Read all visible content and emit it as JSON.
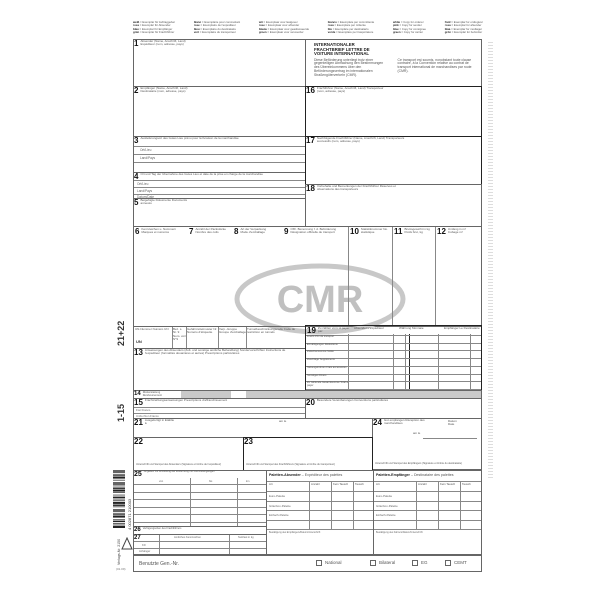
{
  "legend": [
    {
      "c": [
        "weiß",
        "rosa",
        "blau",
        "grün"
      ],
      "t": [
        "Exemplar für Auftraggeber",
        "Exemplar für Absender",
        "Exemplar für Empfänger",
        "Exemplar für Frachtführer"
      ]
    },
    {
      "c": [
        "blanc",
        "rose",
        "bleu",
        "vert"
      ],
      "t": [
        "Exemplaire pour commettant",
        "Exemplaire de l'expéditeur",
        "Exemplaire du destinataire",
        "Exemplaire du transporteur"
      ]
    },
    {
      "c": [
        "wit",
        "rose",
        "blauw",
        "groen"
      ],
      "t": [
        "Exemplaar voor lastgever",
        "Exemplaar voor afzender",
        "Exemplaar voor geadresseerde",
        "Exemplaar voor vervoerder"
      ]
    },
    {
      "c": [
        "bianco",
        "rosa",
        "blu",
        "verde"
      ],
      "t": [
        "Esemplare per committente",
        "Esemplare per mittente",
        "Esemplare per destinatario",
        "Esemplare per trasportatore"
      ]
    },
    {
      "c": [
        "white",
        "pink",
        "blue",
        "green"
      ],
      "t": [
        "Copy for orderer",
        "Copy for sender",
        "Copy for consignee",
        "Copy for carrier"
      ]
    },
    {
      "c": [
        "hvid",
        "rosa",
        "blaa",
        "grön"
      ],
      "t": [
        "Exemplar for ordregiver",
        "Exemplar for afsender",
        "Exemplar for modtager",
        "Exemplar for befordrer"
      ]
    }
  ],
  "header": {
    "title": "INTERNATIONALER FRACHTBRIEF LETTRE DE VOITURE INTERNATIONAL",
    "text_de": "Diese Beförderung unterliegt trotz einer gegenteiligen Abmachung den Bestimmungen des Übereinkommens über den Beförderungsvertrag im internationalen Straßengüterverkehr (CMR).",
    "text_fr": "Ce transport est soumis, nonobstant toute clause contraire, à la Convention relative au contrat de transport international de marchandises par route (CMR)."
  },
  "fields": {
    "f1": {
      "n": "1",
      "l": "Absender (Name, Anschrift, Land) Expéditeur (nom, adresse, pays)"
    },
    "f2": {
      "n": "2",
      "l": "Empfänger (Name, Anschrift, Land) Destinataire (nom, adresse, pays)"
    },
    "f3": {
      "n": "3",
      "l": "Auslieferungsort des Gutes Lieu prévu pour la livraison de la marchandise"
    },
    "f4": {
      "n": "4",
      "l": "Ort und Tag der Übernahme des Gutes Lieu et date de la prise en charge de la marchandise"
    },
    "f5": {
      "n": "5",
      "l": "Beigefügte Dokumente Documents annexés"
    },
    "f6": {
      "n": "6",
      "l": "Kennzeichen u. Nummern Marques et numéros"
    },
    "f7": {
      "n": "7",
      "l": "Anzahl der Packstücke Nombre des colis"
    },
    "f8": {
      "n": "8",
      "l": "Art der Verpackung Mode d'emballage"
    },
    "f9": {
      "n": "9",
      "l": "Offz. Benennung f. d. Beförderung Désignation officielle de transport"
    },
    "f10": {
      "n": "10",
      "l": "Statistiknummer No. statistique"
    },
    "f11": {
      "n": "11",
      "l": "Bruttogewicht in kg Poids brut, kg"
    },
    "f12": {
      "n": "12",
      "l": "Umfang in m³ Cubage m³"
    },
    "f13": {
      "n": "13",
      "l": "Anweisungen des Absenders (Zoll- und sonstige amtliche Behandlung) Sondervorschriften Instructions de l'expéditeur (formalités douanières et autres) Prescriptions particulières"
    },
    "f14": {
      "n": "14",
      "l": "Rückerstattung Remboursement"
    },
    "f15": {
      "n": "15",
      "l": "Frachtzahlungsanweisungen Prescriptions d'affranchissement"
    },
    "f16": {
      "n": "16",
      "l": "Frachtführer (Name, Anschrift, Land) Transporteur (nom, adresse, pays)"
    },
    "f17": {
      "n": "17",
      "l": "Nachfolgende Frachtführer (Name, Anschrift, Land) Transporteurs successifs (nom, adresse, pays)"
    },
    "f18": {
      "n": "18",
      "l": "Vorbehalte und Bemerkungen der Frachtführer Réserves et observations des transporteurs"
    },
    "f19": {
      "n": "19",
      "l": "Zu zahlen vom: A payer par:"
    },
    "f20": {
      "n": "20",
      "l": "Besondere Vereinbarungen Conventions particulières"
    },
    "f21": {
      "n": "21",
      "l": "Ausgefertigt in Etablie à"
    },
    "f22": {
      "n": "22",
      "l": "Unterschrift und Stempel des Absenders (Signature et timbre de l'expéditeur)"
    },
    "f23": {
      "n": "23",
      "l": "Unterschrift und Stempel des Frachtführers (Signature et timbre du transporteur)"
    },
    "f24": {
      "n": "24",
      "l": "Gut empfangen Réception des marchandises"
    },
    "f25": {
      "n": "25",
      "l": "Angaben zur Ermittlung der Entfernung mit Grenzübergängen"
    },
    "f26": {
      "n": "26",
      "l": "Verfügungsorten des Frachtführers"
    },
    "f27": {
      "n": "27",
      "l": ""
    }
  },
  "sub": {
    "ort": "Ort/Lieu",
    "land": "Land/Pays",
    "datum": "Datum/Date",
    "am": "am le",
    "datum24": "Datum Date",
    "sig24": "Unterschrift und Stempel des Empfängers (Signature et timbre du destinataire)",
    "frei": "Frei Franco",
    "unfrei": "Unfrei Non Franco"
  },
  "un_row": [
    "UN-Nummer Numéro UN",
    "Bez. s. Nr. 9 Nom. voir N°9",
    "Gefahrzettelmuster Nr. Numéro d'étiquette",
    "Verp.-Gruppe Groupe d'emballage",
    "Tunnelbeschränkungscode Code de restriction en tunnels"
  ],
  "un_value": "UN",
  "f19_cols": [
    "Absender L'expéditeur",
    "Währung Monnaie",
    "Empfänger Le Destinataire"
  ],
  "f19_rows": [
    "Fracht Prix de transport",
    "Ermäßigungen Réductions",
    "Zwischensumme Solde",
    "Zuschläge Suppléments",
    "Nebengebühren Frais accessoires",
    "Sonstiges Divers",
    "Zu zahlende Gesamtsumme Total à payer"
  ],
  "f25_cols": [
    "von",
    "bis",
    "km"
  ],
  "pallets_sender": {
    "title": "Paletten-Absender",
    "sub": "– Expéditeur des palettes",
    "cols": [
      "Art",
      "Anzahl",
      "Kein Tausch",
      "Tausch"
    ],
    "rows": [
      "Euro-Palette",
      "Gitterbox-Palette",
      "Einfach-Palette"
    ],
    "confirm": "Bestätigung des Empfängers/Datum/Unterschrift"
  },
  "pallets_receiver": {
    "title": "Paletten-Empfänger",
    "sub": "– Destinataire des palettes",
    "cols": [
      "Art",
      "Anzahl",
      "Kein Tausch",
      "Tausch"
    ],
    "rows": [
      "Euro-Palette",
      "Gitterbox-Palette",
      "Einfach-Palette"
    ],
    "confirm": "Bestätigung des Fahrers/Datum/Unterschrift"
  },
  "f27": {
    "cols": [
      "Amtliches Kennzeichen",
      "Nutzlast in kg"
    ],
    "rows": [
      "Kfz",
      "Anhänger"
    ]
  },
  "footer": {
    "label": "Benutzte Gen.-Nr.",
    "options": [
      "National",
      "Bilateral",
      "EG",
      "CEMT"
    ],
    "edition": "(01.09)"
  },
  "side": {
    "range1": "1-15",
    "range2": "21+22",
    "barcode": "4 002871 210003",
    "order": "Verlags-Nr. 2150"
  },
  "logo_text": "CMR",
  "colors": {
    "line": "#666666",
    "logo": "#c8c8c8",
    "shade": "#c9c9c9"
  }
}
